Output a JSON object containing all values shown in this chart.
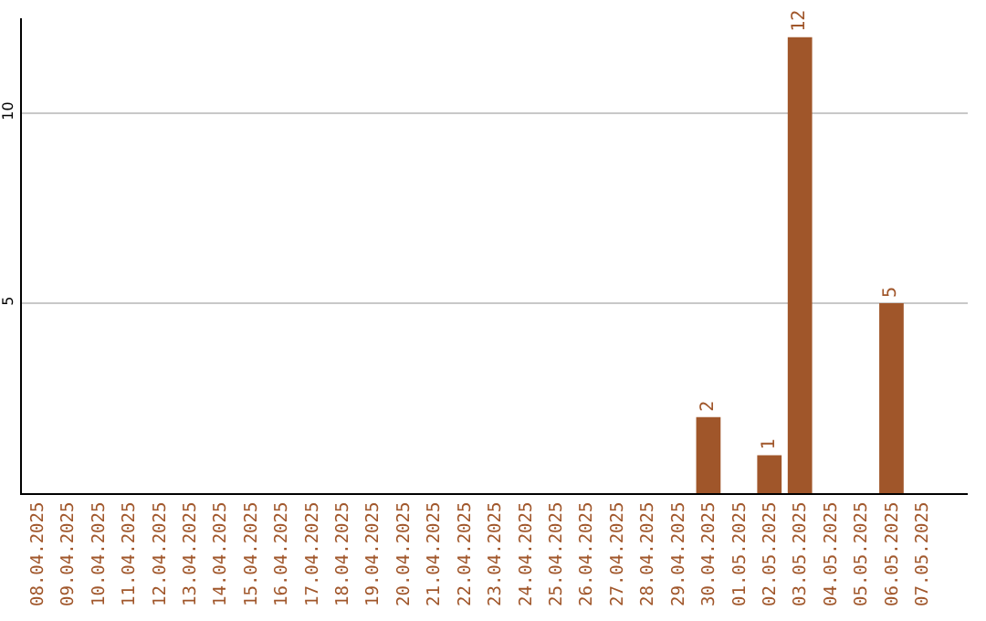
{
  "chart_data": {
    "type": "bar",
    "categories": [
      "08.04.2025",
      "09.04.2025",
      "10.04.2025",
      "11.04.2025",
      "12.04.2025",
      "13.04.2025",
      "14.04.2025",
      "15.04.2025",
      "16.04.2025",
      "17.04.2025",
      "18.04.2025",
      "19.04.2025",
      "20.04.2025",
      "21.04.2025",
      "22.04.2025",
      "23.04.2025",
      "24.04.2025",
      "25.04.2025",
      "26.04.2025",
      "27.04.2025",
      "28.04.2025",
      "29.04.2025",
      "30.04.2025",
      "01.05.2025",
      "02.05.2025",
      "03.05.2025",
      "04.05.2025",
      "05.05.2025",
      "06.05.2025",
      "07.05.2025"
    ],
    "values": [
      0,
      0,
      0,
      0,
      0,
      0,
      0,
      0,
      0,
      0,
      0,
      0,
      0,
      0,
      0,
      0,
      0,
      0,
      0,
      0,
      0,
      0,
      2,
      0,
      1,
      12,
      0,
      0,
      5,
      0
    ],
    "value_labels": [
      null,
      null,
      null,
      null,
      null,
      null,
      null,
      null,
      null,
      null,
      null,
      null,
      null,
      null,
      null,
      null,
      null,
      null,
      null,
      null,
      null,
      null,
      "2",
      null,
      "1",
      "12",
      null,
      null,
      "5",
      null
    ],
    "color": "#a0562a",
    "ylim": [
      0,
      12.5
    ],
    "yticks": [
      5,
      10
    ],
    "grid": "y"
  }
}
